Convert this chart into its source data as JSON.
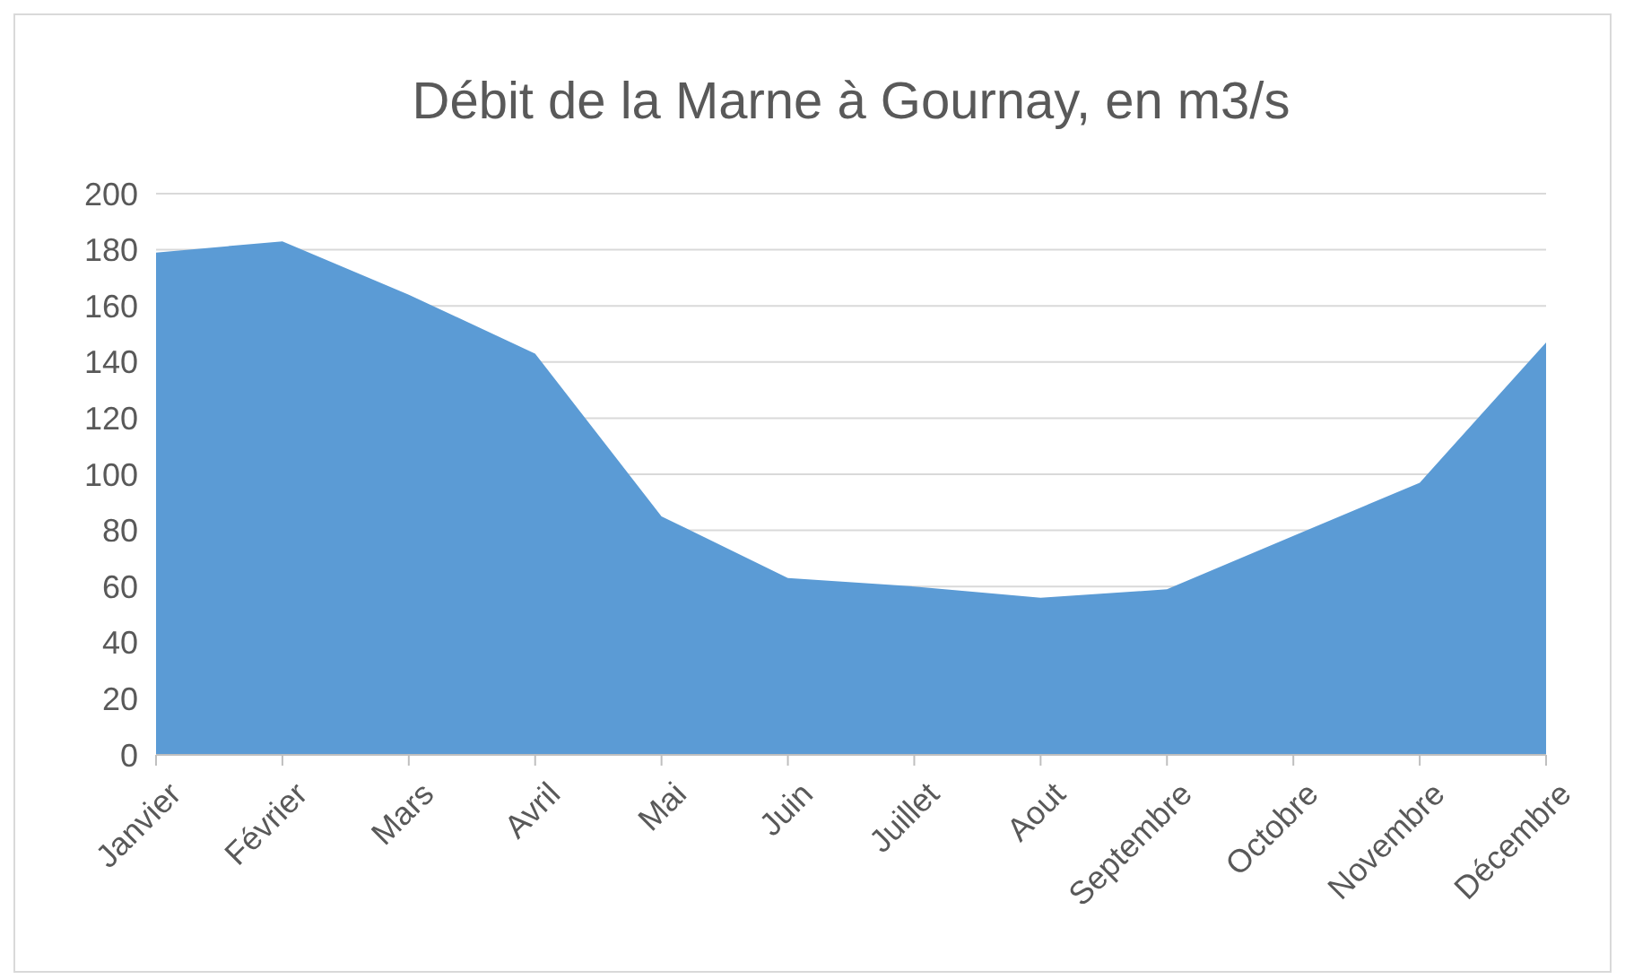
{
  "chart_data": {
    "type": "area",
    "title": "Débit de la Marne à Gournay, en m3/s",
    "categories": [
      "Janvier",
      "Février",
      "Mars",
      "Avril",
      "Mai",
      "Juin",
      "Juillet",
      "Aout",
      "Septembre",
      "Octobre",
      "Novembre",
      "Décembre"
    ],
    "series": [
      {
        "color": "#5b9bd5",
        "values": [
          179,
          183,
          164,
          143,
          85,
          63,
          60,
          56,
          59,
          78,
          97,
          147
        ]
      }
    ],
    "ylim": [
      0,
      200
    ],
    "yticks": [
      0,
      20,
      40,
      60,
      80,
      100,
      120,
      140,
      160,
      180,
      200
    ],
    "grid": "y"
  }
}
